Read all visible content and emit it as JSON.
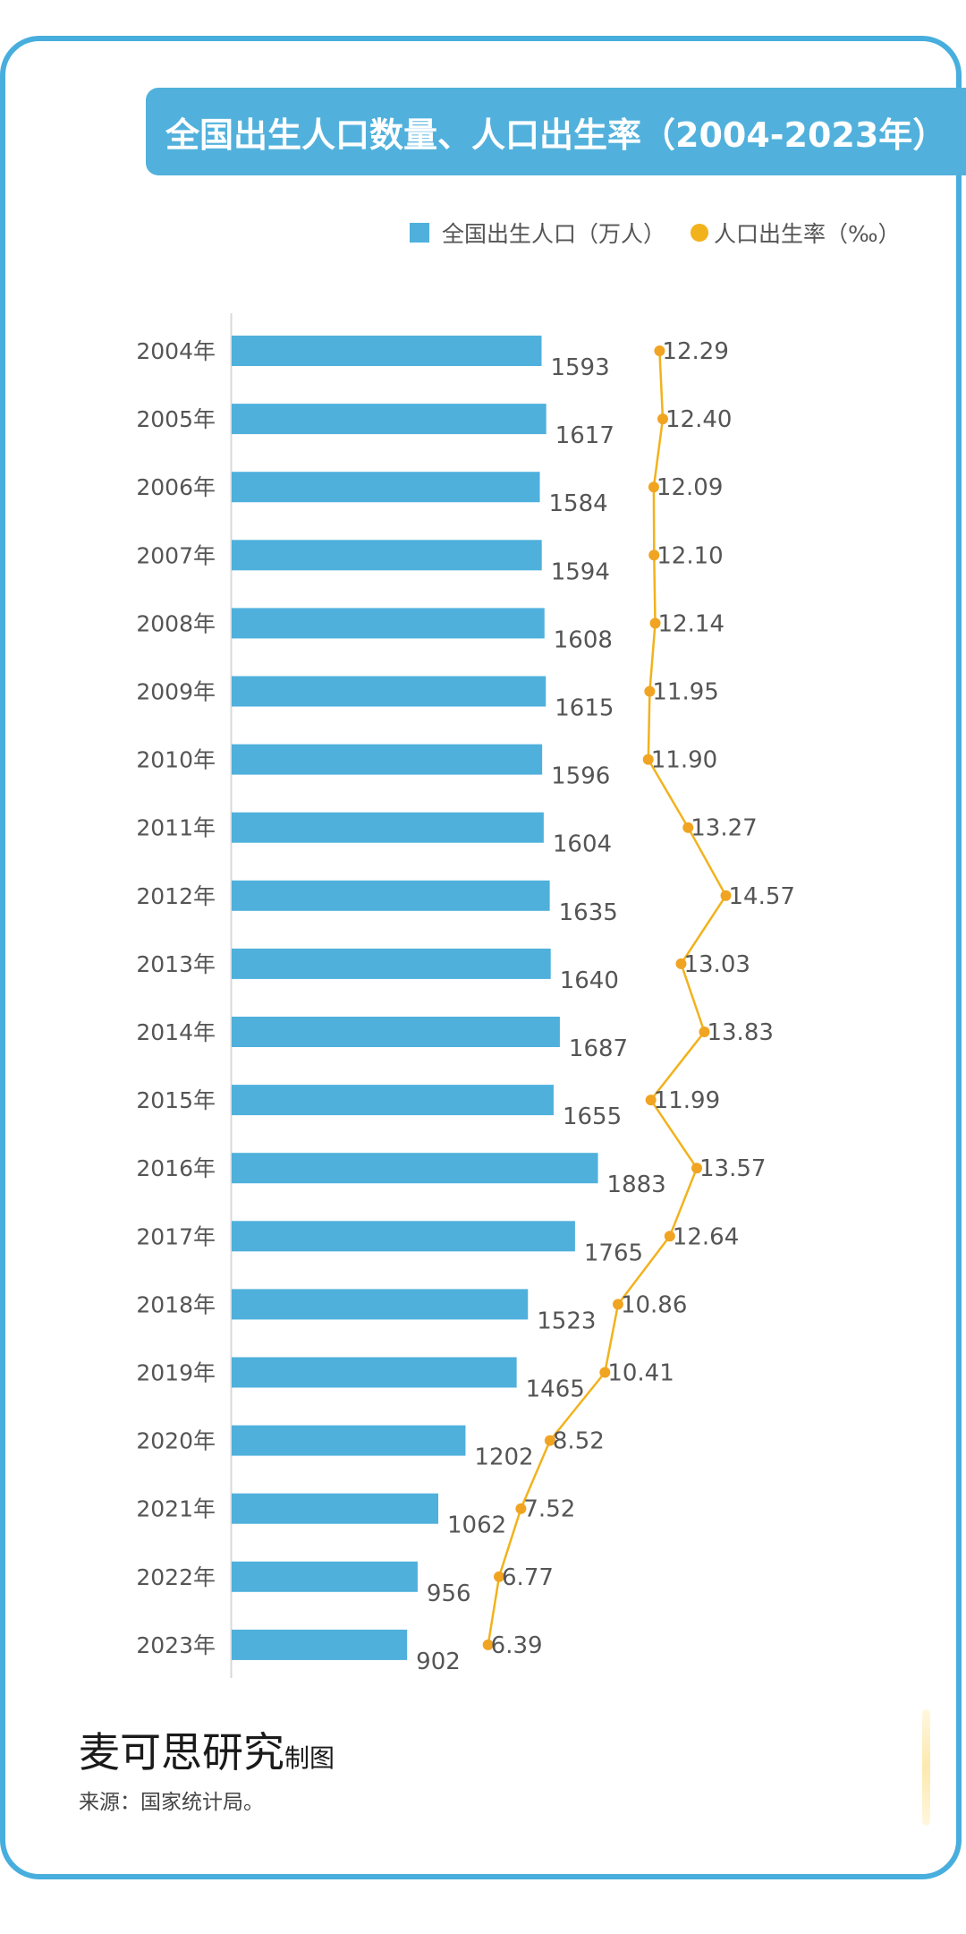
{
  "title": "全国出生人口数量、人口出生率（2004-2023年）",
  "legend": {
    "births_label": "全国出生人口（万人）",
    "rate_label": "人口出生率（‰）"
  },
  "colors": {
    "bar": "#4fb0dc",
    "line": "#f2b21c",
    "accent": "#47aedd"
  },
  "chart_data": {
    "type": "bar",
    "title": "全国出生人口数量、人口出生率（2004-2023年）",
    "categories": [
      "2004年",
      "2005年",
      "2006年",
      "2007年",
      "2008年",
      "2009年",
      "2010年",
      "2011年",
      "2012年",
      "2013年",
      "2014年",
      "2015年",
      "2016年",
      "2017年",
      "2018年",
      "2019年",
      "2020年",
      "2021年",
      "2022年",
      "2023年"
    ],
    "series": [
      {
        "name": "全国出生人口（万人）",
        "type": "bar",
        "values": [
          1593,
          1617,
          1584,
          1594,
          1608,
          1615,
          1596,
          1604,
          1635,
          1640,
          1687,
          1655,
          1883,
          1765,
          1523,
          1465,
          1202,
          1062,
          956,
          902
        ]
      },
      {
        "name": "人口出生率（‰）",
        "type": "line",
        "values": [
          "12.29",
          "12.40",
          "12.09",
          "12.10",
          "12.14",
          "11.95",
          "11.90",
          "13.27",
          "14.57",
          "13.03",
          "13.83",
          "11.99",
          "13.57",
          "12.64",
          "10.86",
          "10.41",
          "8.52",
          "7.52",
          "6.77",
          "6.39"
        ]
      }
    ],
    "orientation": "horizontal",
    "legend_position": "top-right",
    "grid": false
  },
  "footer": {
    "brand": "麦可思研究",
    "brand_suffix": "制图",
    "source": "来源：国家统计局。"
  }
}
